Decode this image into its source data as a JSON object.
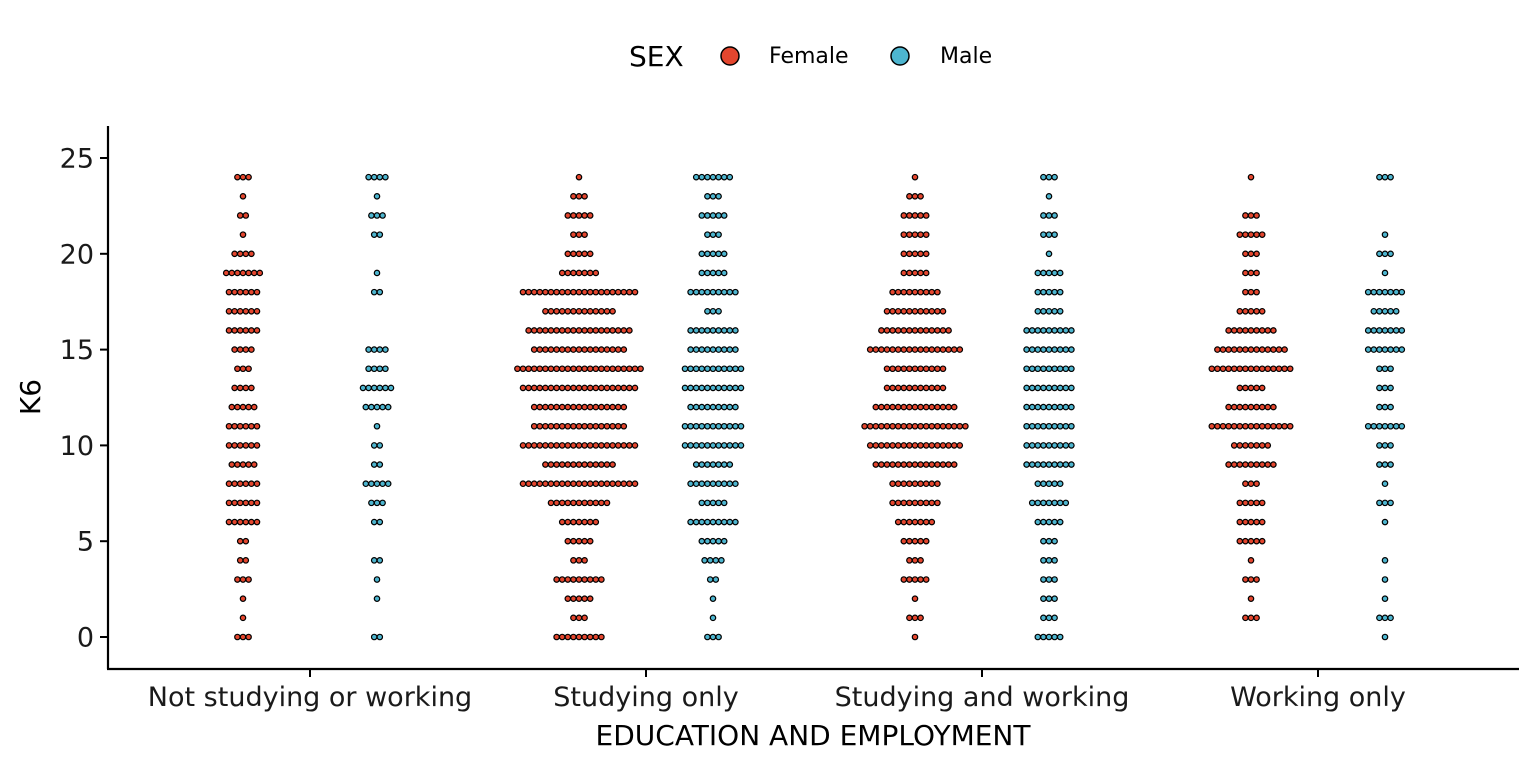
{
  "chart_data": {
    "type": "dotplot",
    "xlabel": "EDUCATION AND EMPLOYMENT",
    "ylabel": "K6",
    "ylim": [
      0,
      25
    ],
    "yticks": [
      0,
      5,
      10,
      15,
      20,
      25
    ],
    "categories": [
      "Not studying or working",
      "Studying only",
      "Studying and working",
      "Working only"
    ],
    "legend": {
      "title": "SEX",
      "position": "top",
      "entries": [
        {
          "name": "Female",
          "color": "#E4462E"
        },
        {
          "name": "Male",
          "color": "#4DB5CF"
        }
      ]
    },
    "grid": false,
    "series": [
      {
        "name": "Female",
        "color": "#E4462E",
        "counts": [
          [
            3,
            1,
            1,
            3,
            2,
            2,
            6,
            6,
            6,
            5,
            6,
            6,
            5,
            4,
            3,
            4,
            6,
            6,
            6,
            7,
            4,
            1,
            2,
            1,
            3
          ],
          [
            9,
            3,
            5,
            9,
            3,
            5,
            7,
            11,
            21,
            13,
            21,
            17,
            17,
            21,
            23,
            17,
            19,
            13,
            21,
            7,
            5,
            3,
            5,
            3,
            1
          ],
          [
            1,
            3,
            1,
            5,
            3,
            5,
            7,
            9,
            9,
            15,
            17,
            19,
            15,
            11,
            11,
            17,
            13,
            11,
            9,
            5,
            5,
            5,
            5,
            3,
            1
          ],
          [
            0,
            3,
            1,
            3,
            1,
            5,
            5,
            5,
            3,
            9,
            7,
            15,
            9,
            5,
            15,
            13,
            9,
            5,
            3,
            3,
            3,
            5,
            3,
            0,
            1
          ]
        ]
      },
      {
        "name": "Male",
        "color": "#4DB5CF",
        "counts": [
          [
            2,
            0,
            1,
            1,
            2,
            0,
            2,
            3,
            5,
            2,
            2,
            1,
            5,
            6,
            4,
            4,
            0,
            0,
            2,
            1,
            0,
            2,
            3,
            1,
            4
          ],
          [
            3,
            1,
            1,
            2,
            4,
            5,
            9,
            5,
            9,
            7,
            11,
            11,
            9,
            11,
            11,
            9,
            9,
            3,
            9,
            5,
            5,
            3,
            5,
            3,
            7
          ],
          [
            5,
            3,
            3,
            3,
            3,
            3,
            5,
            7,
            5,
            9,
            9,
            9,
            9,
            9,
            9,
            9,
            9,
            5,
            5,
            5,
            1,
            3,
            3,
            1,
            3
          ],
          [
            1,
            3,
            1,
            1,
            1,
            0,
            1,
            3,
            1,
            3,
            3,
            7,
            3,
            3,
            3,
            7,
            7,
            5,
            7,
            1,
            3,
            1,
            0,
            0,
            3
          ]
        ]
      }
    ]
  }
}
